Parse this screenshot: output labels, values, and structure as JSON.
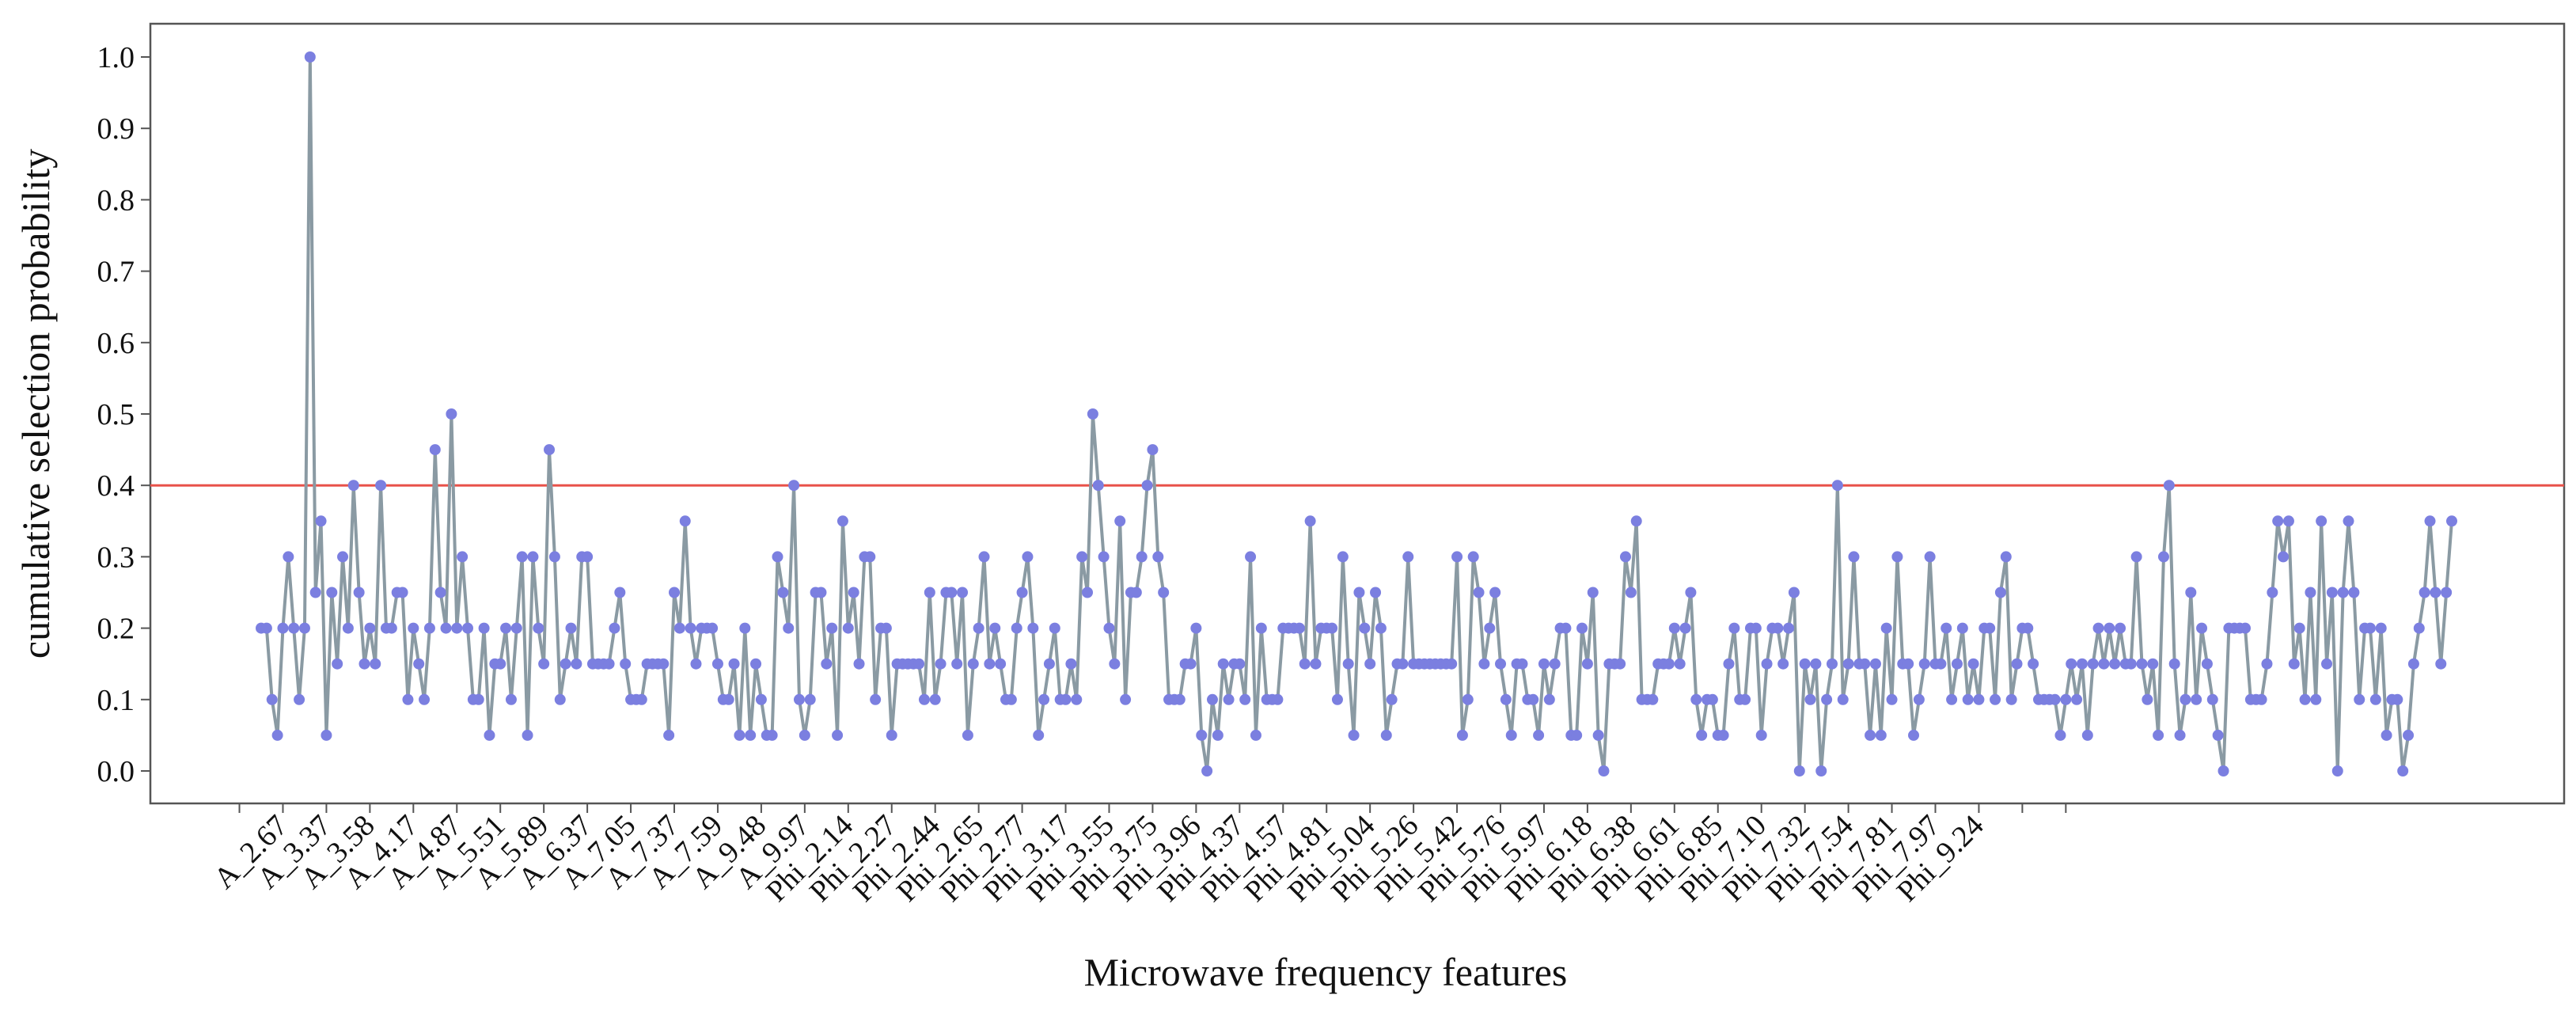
{
  "chart_data": {
    "type": "line",
    "title": "",
    "xlabel": "Microwave frequency features",
    "ylabel": "cumulative selection probability",
    "ylim": [
      -0.05,
      1.05
    ],
    "yticks": [
      0.0,
      0.1,
      0.2,
      0.3,
      0.4,
      0.5,
      0.6,
      0.7,
      0.8,
      0.9,
      1.0
    ],
    "ytick_labels": [
      "0.0",
      "0.1",
      "0.2",
      "0.3",
      "0.4",
      "0.5",
      "0.6",
      "0.7",
      "0.8",
      "0.9",
      "1.0"
    ],
    "xtick_labels": [
      "A_2.67",
      "A_3.37",
      "A_3.58",
      "A_4.17",
      "A_4.87",
      "A_5.51",
      "A_5.89",
      "A_6.37",
      "A_7.05",
      "A_7.37",
      "A_7.59",
      "A_9.48",
      "A_9.97",
      "Phi_2.14",
      "Phi_2.27",
      "Phi_2.44",
      "Phi_2.65",
      "Phi_2.77",
      "Phi_3.17",
      "Phi_3.55",
      "Phi_3.75",
      "Phi_3.96",
      "Phi_4.37",
      "Phi_4.57",
      "Phi_4.81",
      "Phi_5.04",
      "Phi_5.26",
      "Phi_5.42",
      "Phi_5.76",
      "Phi_5.97",
      "Phi_6.18",
      "Phi_6.38",
      "Phi_6.61",
      "Phi_6.85",
      "Phi_7.10",
      "Phi_7.32",
      "Phi_7.54",
      "Phi_7.81",
      "Phi_7.97",
      "Phi_9.24"
    ],
    "tick_every": 8,
    "threshold": 0.4,
    "grid": false,
    "series": [
      {
        "name": "cumulative selection probability",
        "values": [
          0.2,
          0.2,
          0.1,
          0.05,
          0.2,
          0.3,
          0.2,
          0.1,
          0.2,
          1.0,
          0.25,
          0.35,
          0.05,
          0.25,
          0.15,
          0.3,
          0.2,
          0.4,
          0.25,
          0.15,
          0.2,
          0.15,
          0.4,
          0.2,
          0.2,
          0.25,
          0.25,
          0.1,
          0.2,
          0.15,
          0.1,
          0.2,
          0.45,
          0.25,
          0.2,
          0.5,
          0.2,
          0.3,
          0.2,
          0.1,
          0.1,
          0.2,
          0.05,
          0.15,
          0.15,
          0.2,
          0.1,
          0.2,
          0.3,
          0.05,
          0.3,
          0.2,
          0.15,
          0.45,
          0.3,
          0.1,
          0.15,
          0.2,
          0.15,
          0.3,
          0.3,
          0.15,
          0.15,
          0.15,
          0.15,
          0.2,
          0.25,
          0.15,
          0.1,
          0.1,
          0.1,
          0.15,
          0.15,
          0.15,
          0.15,
          0.05,
          0.25,
          0.2,
          0.35,
          0.2,
          0.15,
          0.2,
          0.2,
          0.2,
          0.15,
          0.1,
          0.1,
          0.15,
          0.05,
          0.2,
          0.05,
          0.15,
          0.1,
          0.05,
          0.05,
          0.3,
          0.25,
          0.2,
          0.4,
          0.1,
          0.05,
          0.1,
          0.25,
          0.25,
          0.15,
          0.2,
          0.05,
          0.35,
          0.2,
          0.25,
          0.15,
          0.3,
          0.3,
          0.1,
          0.2,
          0.2,
          0.05,
          0.15,
          0.15,
          0.15,
          0.15,
          0.15,
          0.1,
          0.25,
          0.1,
          0.15,
          0.25,
          0.25,
          0.15,
          0.25,
          0.05,
          0.15,
          0.2,
          0.3,
          0.15,
          0.2,
          0.15,
          0.1,
          0.1,
          0.2,
          0.25,
          0.3,
          0.2,
          0.05,
          0.1,
          0.15,
          0.2,
          0.1,
          0.1,
          0.15,
          0.1,
          0.3,
          0.25,
          0.5,
          0.4,
          0.3,
          0.2,
          0.15,
          0.35,
          0.1,
          0.25,
          0.25,
          0.3,
          0.4,
          0.45,
          0.3,
          0.25,
          0.1,
          0.1,
          0.1,
          0.15,
          0.15,
          0.2,
          0.05,
          0.0,
          0.1,
          0.05,
          0.15,
          0.1,
          0.15,
          0.15,
          0.1,
          0.3,
          0.05,
          0.2,
          0.1,
          0.1,
          0.1,
          0.2,
          0.2,
          0.2,
          0.2,
          0.15,
          0.35,
          0.15,
          0.2,
          0.2,
          0.2,
          0.1,
          0.3,
          0.15,
          0.05,
          0.25,
          0.2,
          0.15,
          0.25,
          0.2,
          0.05,
          0.1,
          0.15,
          0.15,
          0.3,
          0.15,
          0.15,
          0.15,
          0.15,
          0.15,
          0.15,
          0.15,
          0.15,
          0.3,
          0.05,
          0.1,
          0.3,
          0.25,
          0.15,
          0.2,
          0.25,
          0.15,
          0.1,
          0.05,
          0.15,
          0.15,
          0.1,
          0.1,
          0.05,
          0.15,
          0.1,
          0.15,
          0.2,
          0.2,
          0.05,
          0.05,
          0.2,
          0.15,
          0.25,
          0.05,
          0.0,
          0.15,
          0.15,
          0.15,
          0.3,
          0.25,
          0.35,
          0.1,
          0.1,
          0.1,
          0.15,
          0.15,
          0.15,
          0.2,
          0.15,
          0.2,
          0.25,
          0.1,
          0.05,
          0.1,
          0.1,
          0.05,
          0.05,
          0.15,
          0.2,
          0.1,
          0.1,
          0.2,
          0.2,
          0.05,
          0.15,
          0.2,
          0.2,
          0.15,
          0.2,
          0.25,
          0.0,
          0.15,
          0.1,
          0.15,
          0.0,
          0.1,
          0.15,
          0.4,
          0.1,
          0.15,
          0.3,
          0.15,
          0.15,
          0.05,
          0.15,
          0.05,
          0.2,
          0.1,
          0.3,
          0.15,
          0.15,
          0.05,
          0.1,
          0.15,
          0.3,
          0.15,
          0.15,
          0.2,
          0.1,
          0.15,
          0.2,
          0.1,
          0.15,
          0.1,
          0.2,
          0.2,
          0.1,
          0.25,
          0.3,
          0.1,
          0.15,
          0.2,
          0.2,
          0.15,
          0.1,
          0.1,
          0.1,
          0.1,
          0.05,
          0.1,
          0.15,
          0.1,
          0.15,
          0.05,
          0.15,
          0.2,
          0.15,
          0.2,
          0.15,
          0.2,
          0.15,
          0.15,
          0.3,
          0.15,
          0.1,
          0.15,
          0.05,
          0.3,
          0.4,
          0.15,
          0.05,
          0.1,
          0.25,
          0.1,
          0.2,
          0.15,
          0.1,
          0.05,
          0.0,
          0.2,
          0.2,
          0.2,
          0.2,
          0.1,
          0.1,
          0.1,
          0.15,
          0.25,
          0.35,
          0.3,
          0.35,
          0.15,
          0.2,
          0.1,
          0.25,
          0.1,
          0.35,
          0.15,
          0.25,
          0.0,
          0.25,
          0.35,
          0.25,
          0.1,
          0.2,
          0.2,
          0.1,
          0.2,
          0.05,
          0.1,
          0.1,
          0.0,
          0.05,
          0.15,
          0.2,
          0.25,
          0.35,
          0.25,
          0.15,
          0.25,
          0.35
        ]
      }
    ],
    "colors": {
      "line": "#8a9aa3",
      "marker": "#7b7fe0",
      "threshold": "#e8524a",
      "axis": "#555555"
    }
  }
}
